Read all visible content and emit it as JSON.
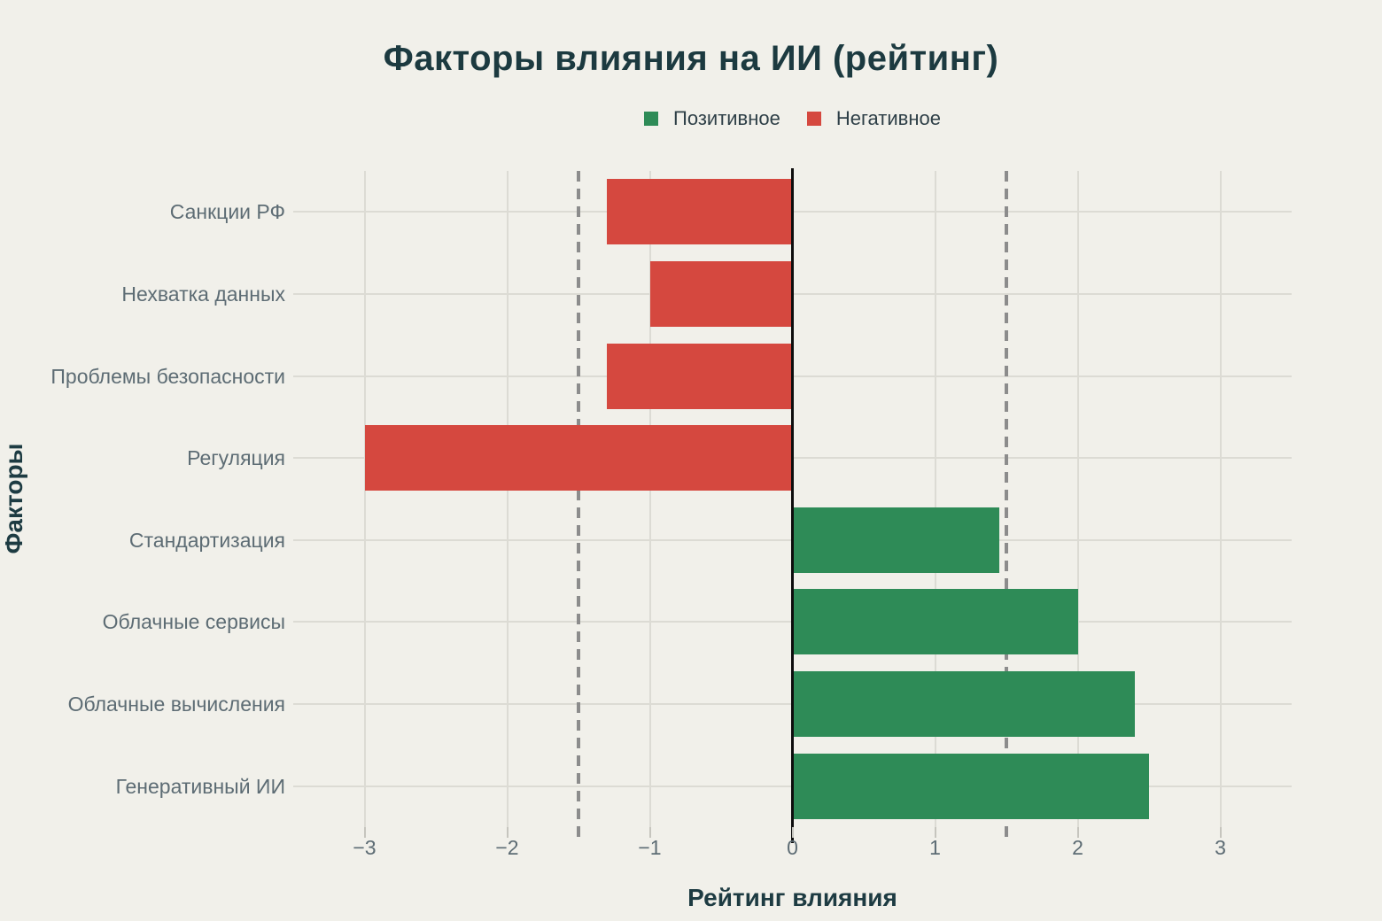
{
  "chart_data": {
    "type": "bar",
    "orientation": "horizontal",
    "title": "Факторы влияния на ИИ (рейтинг)",
    "xlabel": "Рейтинг влияния",
    "ylabel": "Факторы",
    "categories": [
      "Санкции РФ",
      "Нехватка данных",
      "Проблемы безопасности",
      "Регуляция",
      "Стандартизация",
      "Облачные сервисы",
      "Облачные вычисления",
      "Генеративный ИИ"
    ],
    "values": [
      -1.3,
      -1.0,
      -1.3,
      -3.0,
      1.45,
      2.0,
      2.4,
      2.5
    ],
    "legend": [
      {
        "name": "positive",
        "label": "Позитивное",
        "color": "#2e8b57"
      },
      {
        "name": "negative",
        "label": "Негативное",
        "color": "#d5483f"
      }
    ],
    "legend_position": "top-center",
    "xlim": [
      -3.5,
      3.5
    ],
    "xticks": {
      "values": [
        -3,
        -2,
        -1,
        0,
        1,
        2,
        3
      ],
      "labels": [
        "−3",
        "−2",
        "−1",
        "0",
        "1",
        "2",
        "3"
      ]
    },
    "reference_lines": [
      -1.5,
      1.5
    ],
    "grid": true,
    "colors": {
      "background": "#f1f0ea",
      "grid": "#dcdbd4",
      "dashed_line": "#8c8c8c",
      "zero_line": "#0d0d0d",
      "positive": "#2e8b57",
      "negative": "#d5483f",
      "title_text": "#1c3a40",
      "tick_text": "#5d6c74"
    }
  }
}
